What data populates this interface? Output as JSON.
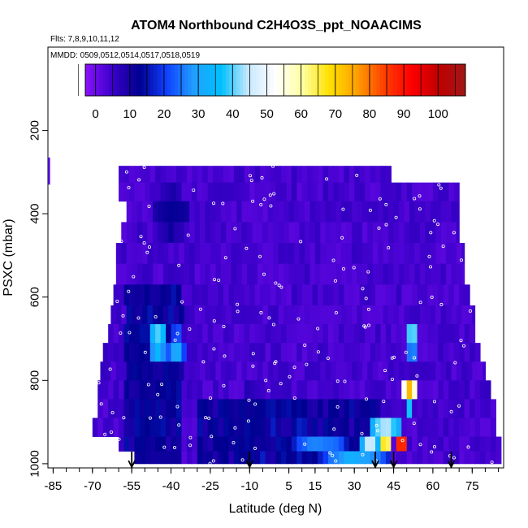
{
  "chart_data": {
    "type": "heatmap",
    "title": "ATOM4 Northbound C2H4O3S_ppt_NOAACIMS",
    "flights_label": "Flts: 7,8,9,10,11,12",
    "mmdd_label": "MMDD: 0509,0512,0514,0517,0518,0519",
    "xlabel": "Latitude (deg N)",
    "ylabel": "PSXC (mbar)",
    "xlim": [
      -87,
      87
    ],
    "ylim": [
      1010,
      0
    ],
    "x_ticks": [
      -85,
      -70,
      -55,
      -40,
      -25,
      -10,
      5,
      15,
      30,
      45,
      60,
      75
    ],
    "x_tick_labels": [
      "-85",
      "-70",
      "-55",
      "-40",
      "-25",
      "-10",
      "5",
      "15",
      "30",
      "45",
      "60",
      "75"
    ],
    "y_ticks": [
      200,
      400,
      600,
      800,
      1000
    ],
    "y_tick_labels": [
      "200",
      "400",
      "600",
      "800",
      "1000"
    ],
    "colorbar": {
      "min": -3,
      "max": 108,
      "ticks": [
        0,
        10,
        20,
        30,
        40,
        50,
        60,
        70,
        80,
        90,
        100
      ],
      "tick_labels": [
        "0",
        "10",
        "20",
        "30",
        "40",
        "50",
        "60",
        "70",
        "80",
        "90",
        "100"
      ],
      "colors": [
        "#8b10ff",
        "#3a00c8",
        "#000090",
        "#1040ff",
        "#20a0ff",
        "#00c0ff",
        "#c8e8ff",
        "#ffffff",
        "#ffffa0",
        "#ffe000",
        "#ffa000",
        "#ff4000",
        "#ff0000",
        "#c00000",
        "#a01818"
      ]
    },
    "layers": [
      {
        "p_top": 285,
        "p_bot": 325,
        "lat_min": -60,
        "lat_max": 44
      },
      {
        "p_top": 325,
        "p_bot": 370,
        "lat_min": -60,
        "lat_max": 70
      },
      {
        "p_top": 370,
        "p_bot": 420,
        "lat_min": -57,
        "lat_max": 70
      },
      {
        "p_top": 420,
        "p_bot": 470,
        "lat_min": -59,
        "lat_max": 70
      },
      {
        "p_top": 470,
        "p_bot": 520,
        "lat_min": -61,
        "lat_max": 72
      },
      {
        "p_top": 520,
        "p_bot": 570,
        "lat_min": -61,
        "lat_max": 72
      },
      {
        "p_top": 570,
        "p_bot": 620,
        "lat_min": -62,
        "lat_max": 74
      },
      {
        "p_top": 620,
        "p_bot": 665,
        "lat_min": -63,
        "lat_max": 76
      },
      {
        "p_top": 665,
        "p_bot": 710,
        "lat_min": -64,
        "lat_max": 76
      },
      {
        "p_top": 710,
        "p_bot": 755,
        "lat_min": -66,
        "lat_max": 78
      },
      {
        "p_top": 755,
        "p_bot": 800,
        "lat_min": -67,
        "lat_max": 80
      },
      {
        "p_top": 800,
        "p_bot": 845,
        "lat_min": -68,
        "lat_max": 82
      },
      {
        "p_top": 845,
        "p_bot": 890,
        "lat_min": -68,
        "lat_max": 84
      },
      {
        "p_top": 890,
        "p_bot": 935,
        "lat_min": -70,
        "lat_max": 84
      },
      {
        "p_top": 935,
        "p_bot": 970,
        "lat_min": -60,
        "lat_max": 86
      },
      {
        "p_top": 970,
        "p_bot": 1000,
        "lat_min": -54,
        "lat_max": 86
      }
    ],
    "hotspots": [
      {
        "lat": -40,
        "p": 400,
        "dlat": 8,
        "dp": 60,
        "value": 12
      },
      {
        "lat": -45,
        "p": 700,
        "dlat": 4,
        "dp": 55,
        "value": 40
      },
      {
        "lat": -38,
        "p": 720,
        "dlat": 4,
        "dp": 40,
        "value": 32
      },
      {
        "lat": -48,
        "p": 640,
        "dlat": 5,
        "dp": 80,
        "value": 10
      },
      {
        "lat": -10,
        "p": 900,
        "dlat": 12,
        "dp": 80,
        "value": 12
      },
      {
        "lat": 15,
        "p": 950,
        "dlat": 10,
        "dp": 30,
        "value": 25
      },
      {
        "lat": 30,
        "p": 985,
        "dlat": 14,
        "dp": 20,
        "value": 30
      },
      {
        "lat": 52,
        "p": 700,
        "dlat": 3,
        "dp": 40,
        "value": 42
      },
      {
        "lat": 51,
        "p": 830,
        "dlat": 3,
        "dp": 40,
        "value": 72
      },
      {
        "lat": 42,
        "p": 900,
        "dlat": 7,
        "dp": 28,
        "value": 48
      },
      {
        "lat": 48,
        "p": 945,
        "dlat": 3,
        "dp": 26,
        "value": 96
      },
      {
        "lat": 42,
        "p": 945,
        "dlat": 3,
        "dp": 24,
        "value": 72
      },
      {
        "lat": 36,
        "p": 945,
        "dlat": 4,
        "dp": 24,
        "value": 48
      },
      {
        "lat": 20,
        "p": 945,
        "dlat": 8,
        "dp": 22,
        "value": 26
      }
    ],
    "arrows_lat": [
      -55,
      -10,
      38,
      45,
      67
    ]
  }
}
